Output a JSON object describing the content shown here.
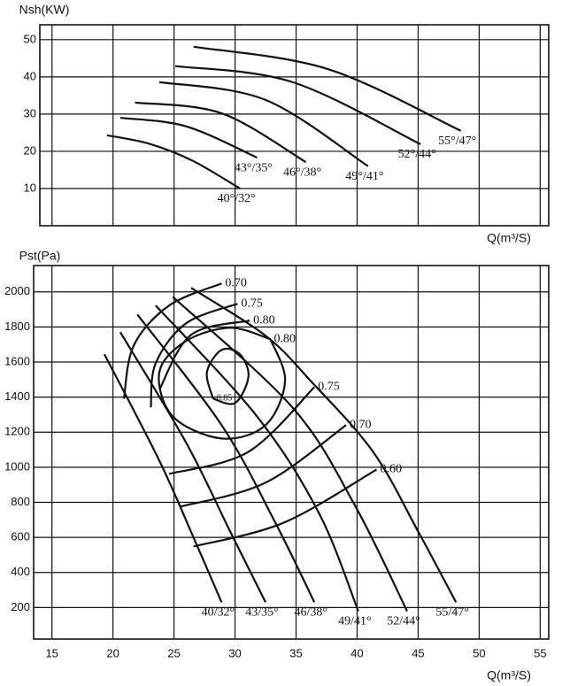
{
  "chart_data": [
    {
      "type": "line",
      "y_label": "Nsh(KW)",
      "x_label": "Q(m³/S)",
      "color": "#111111",
      "grid": true,
      "show_xtick_labels": false,
      "xlim": [
        14,
        55.7
      ],
      "ylim": [
        0,
        54
      ],
      "xticks": [
        15,
        20,
        25,
        30,
        35,
        40,
        45,
        50,
        55
      ],
      "yticks": [
        10,
        20,
        30,
        40,
        50
      ],
      "series": [
        {
          "name": "40°/32°",
          "x": [
            19.5,
            23,
            26.5,
            30.4
          ],
          "values": [
            24.3,
            22,
            17.5,
            10
          ]
        },
        {
          "name": "43°/35°",
          "x": [
            20.6,
            26,
            31.8
          ],
          "values": [
            29,
            26.7,
            18.3
          ]
        },
        {
          "name": "46°/38°",
          "x": [
            21.8,
            28.9,
            35.8
          ],
          "values": [
            33.1,
            30.2,
            17.1
          ]
        },
        {
          "name": "49°/41°",
          "x": [
            23.8,
            32.5,
            40.9
          ],
          "values": [
            38.6,
            33.8,
            16
          ]
        },
        {
          "name": "52°/44°",
          "x": [
            25.1,
            34.7,
            45.2
          ],
          "values": [
            42.9,
            38.6,
            21.9
          ]
        },
        {
          "name": "55°/47°",
          "x": [
            26.6,
            37.6,
            48.5
          ],
          "values": [
            48.1,
            42.1,
            25.5
          ]
        }
      ]
    },
    {
      "type": "line",
      "y_label": "Pst(Pa)",
      "x_label": "Q(m³/S)",
      "color": "#111111",
      "grid": true,
      "show_xtick_labels": true,
      "xlim": [
        13.5,
        55.7
      ],
      "ylim": [
        20,
        2150
      ],
      "xticks": [
        15,
        20,
        25,
        30,
        35,
        40,
        45,
        50,
        55
      ],
      "yticks": [
        200,
        400,
        600,
        800,
        1000,
        1200,
        1400,
        1600,
        1800,
        2000
      ],
      "series": [
        {
          "name": "40/32°",
          "x": [
            19.3,
            23.8,
            26.7,
            28.9
          ],
          "values": [
            1644,
            1037,
            583,
            230
          ]
        },
        {
          "name": "43/35°",
          "x": [
            20.6,
            26,
            29.6,
            32.5
          ],
          "values": [
            1770,
            1139,
            634,
            230
          ]
        },
        {
          "name": "46/38°",
          "x": [
            22,
            28.9,
            33.3,
            36.5
          ],
          "values": [
            1871,
            1240,
            684,
            230
          ]
        },
        {
          "name": "49/41°",
          "x": [
            23.5,
            31.8,
            36.9,
            40.1
          ],
          "values": [
            1922,
            1290,
            735,
            179
          ]
        },
        {
          "name": "52/44°",
          "x": [
            24.9,
            34.7,
            39.8,
            44.1
          ],
          "values": [
            1972,
            1341,
            785,
            179
          ]
        },
        {
          "name": "55/47°",
          "x": [
            26.4,
            32.5,
            36.2,
            41.3,
            45,
            48.1
          ],
          "values": [
            2023,
            1750,
            1492,
            1089,
            634,
            230
          ]
        },
        {
          "name": "0.70",
          "x": [
            20.9,
            21.7,
            24.6,
            28.9
          ],
          "values": [
            1391,
            1694,
            1922,
            2048
          ]
        },
        {
          "name": "0.75",
          "x": [
            23.1,
            23.5,
            26,
            30.2
          ],
          "values": [
            1341,
            1593,
            1821,
            1932
          ]
        },
        {
          "name": "0.80",
          "x": [
            23.8,
            26.4,
            31.2
          ],
          "values": [
            1442,
            1755,
            1836
          ]
        },
        {
          "name": "0.80",
          "x": [
            32.9,
            34.1,
            32.5,
            28.9,
            24.9,
            23.8,
            26,
            29.6,
            32.9
          ],
          "values": [
            1730,
            1492,
            1240,
            1164,
            1290,
            1543,
            1720,
            1795,
            1730
          ]
        },
        {
          "name": "0.85",
          "x": [
            28.2,
            27.7,
            28.9,
            30.4,
            31.1,
            30,
            28.2
          ],
          "values": [
            1391,
            1543,
            1669,
            1644,
            1517,
            1366,
            1391
          ]
        },
        {
          "name": "0.75",
          "x": [
            24.6,
            31.1,
            36.5
          ],
          "values": [
            962,
            1088,
            1457
          ]
        },
        {
          "name": "0.70",
          "x": [
            25.5,
            32.5,
            39.1
          ],
          "values": [
            775,
            912,
            1240
          ]
        },
        {
          "name": "0.60",
          "x": [
            26.6,
            34,
            41.6
          ],
          "values": [
            548,
            684,
            987
          ]
        }
      ]
    }
  ]
}
